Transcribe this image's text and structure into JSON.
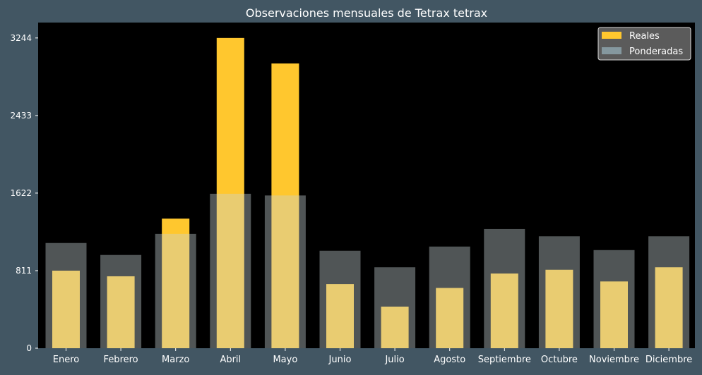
{
  "chart_data": {
    "type": "bar",
    "title": "Observaciones mensuales de Tetrax tetrax",
    "xlabel": "",
    "ylabel": "",
    "ylim": [
      0,
      3405
    ],
    "yticks": [
      0,
      811,
      1622,
      2433,
      3244
    ],
    "categories": [
      "Enero",
      "Febrero",
      "Marzo",
      "Abril",
      "Mayo",
      "Junio",
      "Julio",
      "Agosto",
      "Septiembre",
      "Octubre",
      "Noviembre",
      "Diciembre"
    ],
    "series": [
      {
        "name": "Reales",
        "color": "#ffc72e",
        "values": [
          811,
          752,
          1355,
          3244,
          2977,
          670,
          435,
          630,
          781,
          820,
          698,
          846
        ]
      },
      {
        "name": "Ponderadas",
        "color": "#c8d4d8",
        "values": [
          1100,
          975,
          1195,
          1615,
          1597,
          1019,
          846,
          1063,
          1246,
          1170,
          1026,
          1170
        ]
      }
    ],
    "legend": {
      "position": "top-right"
    },
    "grid": false,
    "colors": {
      "figure_background": "#425663",
      "plot_background": "#000000",
      "text": "#ffffff"
    }
  }
}
